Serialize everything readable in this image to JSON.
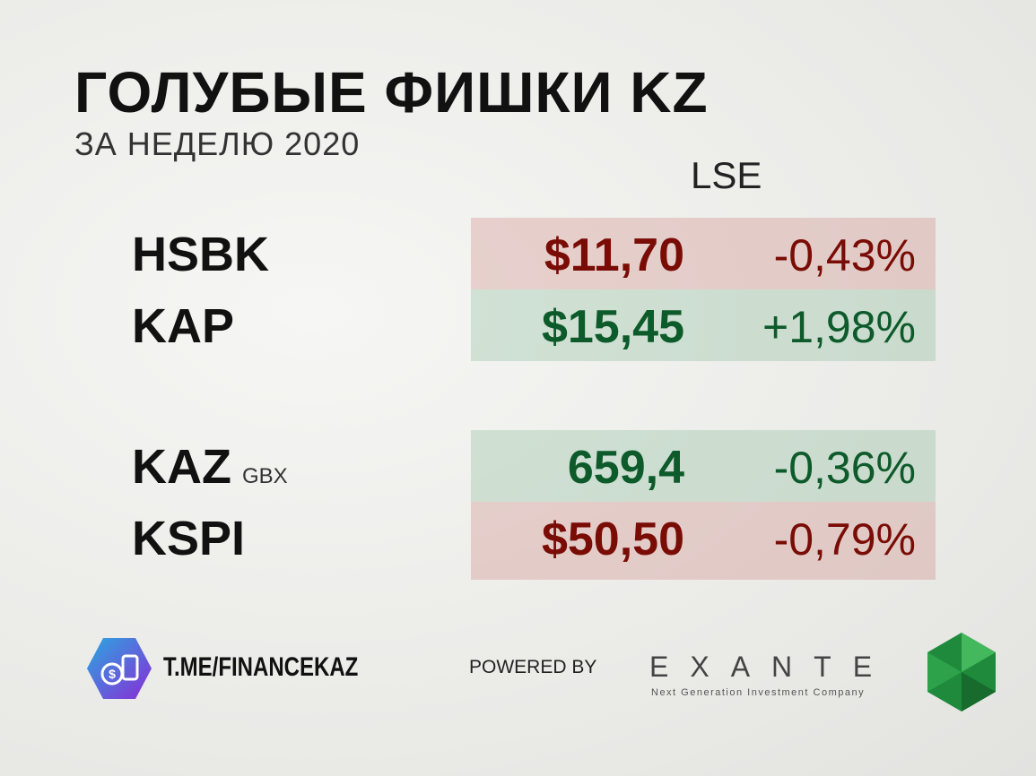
{
  "header": {
    "title": "ГОЛУБЫЕ ФИШКИ KZ",
    "subtitle": "ЗА НЕДЕЛЮ 2020",
    "exchange": "LSE"
  },
  "groups": [
    {
      "rows": [
        {
          "ticker": "HSBK",
          "price": "$11,70",
          "change": "-0,43%",
          "color": "red"
        },
        {
          "ticker": "KAP",
          "price": "$15,45",
          "change": "+1,98%",
          "color": "green"
        }
      ]
    },
    {
      "rows": [
        {
          "ticker": "KAZ",
          "unit": "GBX",
          "price": "659,4",
          "change": "-0,36%",
          "color": "green"
        },
        {
          "ticker": "KSPI",
          "price": "$50,50",
          "change": "-0,79%",
          "color": "red"
        }
      ]
    }
  ],
  "footer": {
    "channel": "T.ME/FINANCEKAZ",
    "powered_by": "POWERED BY",
    "brand": "EXANTE",
    "tagline": "Next Generation Investment Company"
  }
}
